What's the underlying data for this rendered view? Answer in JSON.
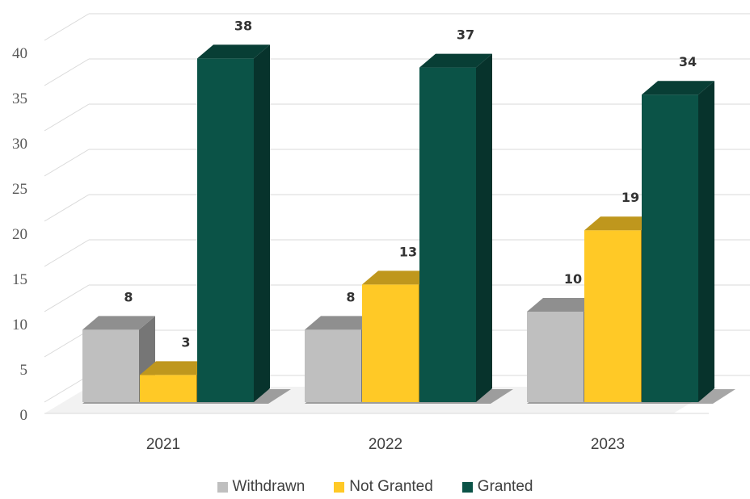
{
  "chart_data": {
    "type": "bar",
    "categories": [
      "2021",
      "2022",
      "2023"
    ],
    "series": [
      {
        "name": "Withdrawn",
        "values": [
          8,
          8,
          10
        ],
        "color": "#BFBFBF"
      },
      {
        "name": "Not Granted",
        "values": [
          3,
          13,
          19
        ],
        "color": "#FFC926"
      },
      {
        "name": "Granted",
        "values": [
          38,
          37,
          34
        ],
        "color": "#0B5347"
      }
    ],
    "ylim": [
      0,
      40
    ],
    "yticks": [
      "0",
      "5",
      "10",
      "15",
      "20",
      "25",
      "30",
      "35",
      "40"
    ],
    "grid": true,
    "legend_position": "bottom",
    "style": "3d-clustered-column"
  }
}
